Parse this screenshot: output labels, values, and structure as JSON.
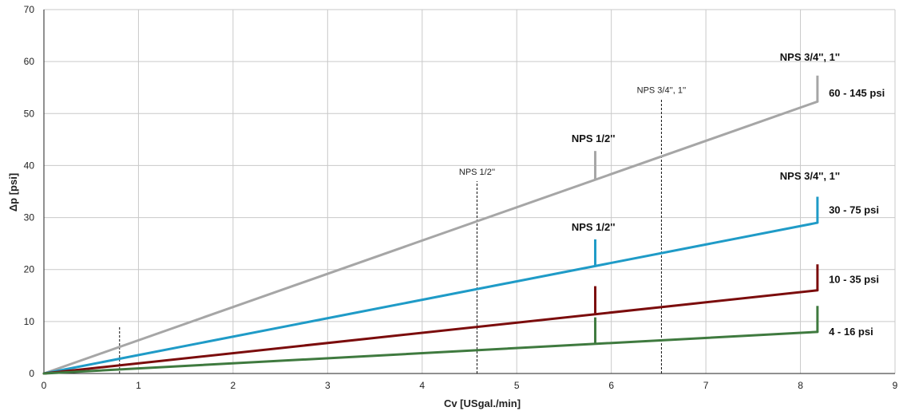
{
  "chart_data": {
    "type": "line",
    "xlabel": "Cv [USgal./min]",
    "ylabel": "Δp [psi]",
    "xlim": [
      0,
      9
    ],
    "ylim": [
      0,
      70
    ],
    "xticks": [
      0,
      1,
      2,
      3,
      4,
      5,
      6,
      7,
      8,
      9
    ],
    "yticks": [
      0,
      10,
      20,
      30,
      40,
      50,
      60,
      70
    ],
    "grid": true,
    "series": [
      {
        "name": "60 - 145 psi",
        "color": "#a6a6a6",
        "x": [
          0,
          8.18
        ],
        "y": [
          0,
          52.3
        ]
      },
      {
        "name": "30 - 75 psi",
        "color": "#1f9bc7",
        "x": [
          0,
          8.18
        ],
        "y": [
          0,
          29
        ]
      },
      {
        "name": "10 - 35 psi",
        "color": "#7b0c0c",
        "x": [
          0,
          8.18
        ],
        "y": [
          0,
          16
        ]
      },
      {
        "name": "4 - 16 psi",
        "color": "#3f7a3f",
        "x": [
          0,
          8.18
        ],
        "y": [
          0,
          8
        ]
      }
    ],
    "markers": [
      {
        "color": "#a6a6a6",
        "x": 5.83,
        "y0": 37.3,
        "y1": 42.8
      },
      {
        "color": "#1f9bc7",
        "x": 5.83,
        "y0": 20.8,
        "y1": 25.8
      },
      {
        "color": "#7b0c0c",
        "x": 5.83,
        "y0": 11.6,
        "y1": 16.8
      },
      {
        "color": "#3f7a3f",
        "x": 5.83,
        "y0": 5.8,
        "y1": 10.8
      },
      {
        "color": "#a6a6a6",
        "x": 8.18,
        "y0": 52.3,
        "y1": 57.3
      },
      {
        "color": "#1f9bc7",
        "x": 8.18,
        "y0": 29,
        "y1": 34
      },
      {
        "color": "#7b0c0c",
        "x": 8.18,
        "y0": 16,
        "y1": 21
      },
      {
        "color": "#3f7a3f",
        "x": 8.18,
        "y0": 8,
        "y1": 13
      }
    ],
    "reference_lines": [
      {
        "x": 0.8,
        "y_top": 9,
        "label": ""
      },
      {
        "x": 4.58,
        "y_top": 37,
        "label": "NPS 1/2''"
      },
      {
        "x": 6.53,
        "y_top": 52.7,
        "label": "NPS 3/4'', 1''"
      }
    ],
    "annotations": [
      {
        "text": "NPS 3/4'', 1''",
        "x": 8.1,
        "y": 60.2,
        "style": "bold",
        "anchor": "middle"
      },
      {
        "text": "60 - 145 psi",
        "x": 8.3,
        "y": 53.3,
        "style": "bold",
        "anchor": "start"
      },
      {
        "text": "NPS 1/2''",
        "x": 5.81,
        "y": 44.5,
        "style": "bold",
        "anchor": "middle"
      },
      {
        "text": "NPS 3/4'', 1''",
        "x": 8.1,
        "y": 37.3,
        "style": "bold",
        "anchor": "middle"
      },
      {
        "text": "30 - 75 psi",
        "x": 8.3,
        "y": 30.8,
        "style": "bold",
        "anchor": "start"
      },
      {
        "text": "NPS 1/2''",
        "x": 5.81,
        "y": 27.5,
        "style": "bold",
        "anchor": "middle"
      },
      {
        "text": "10 - 35 psi",
        "x": 8.3,
        "y": 17.4,
        "style": "bold",
        "anchor": "start"
      },
      {
        "text": "4 - 16 psi",
        "x": 8.3,
        "y": 7.4,
        "style": "bold",
        "anchor": "start"
      }
    ]
  }
}
